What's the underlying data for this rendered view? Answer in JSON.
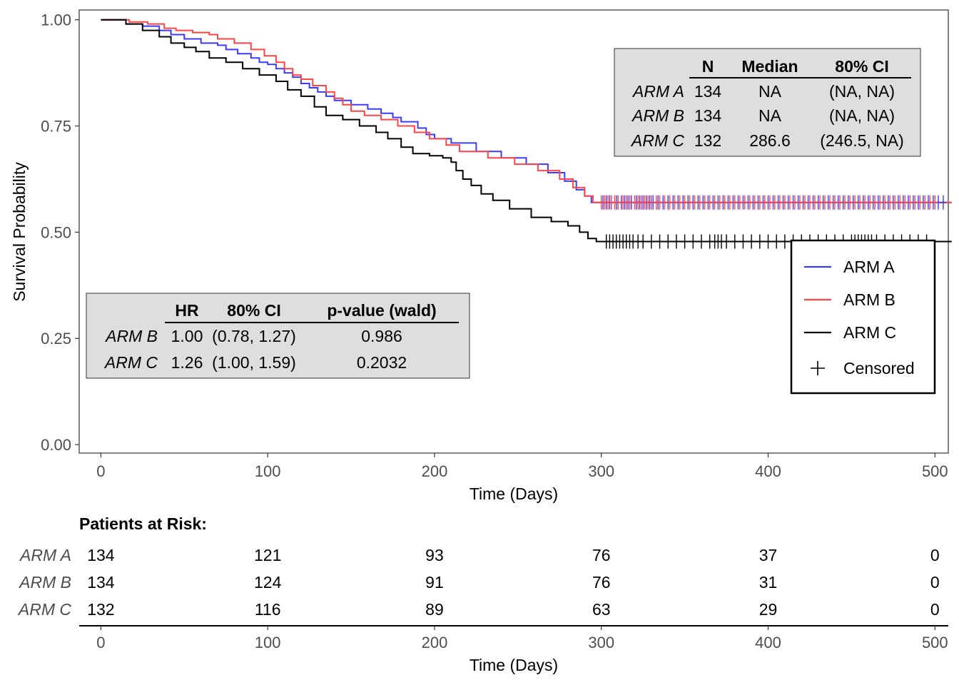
{
  "chart_data": {
    "type": "line",
    "subtype": "kaplan-meier",
    "xlabel": "Time (Days)",
    "ylabel": "Survival Probability",
    "xlim": [
      -13,
      508
    ],
    "ylim": [
      -0.02,
      1.023
    ],
    "x_ticks": [
      0,
      100,
      200,
      300,
      400,
      500
    ],
    "y_ticks": [
      0.0,
      0.25,
      0.5,
      0.75,
      1.0
    ],
    "y_tick_labels": [
      "0.00",
      "0.25",
      "0.50",
      "0.75",
      "1.00"
    ],
    "grid": false,
    "legend": {
      "position": "right",
      "entries": [
        "ARM A",
        "ARM B",
        "ARM C",
        "Censored"
      ]
    },
    "series": [
      {
        "name": "ARM A",
        "color": "#3b3bff",
        "steps": [
          [
            0,
            1.0
          ],
          [
            15,
            0.99
          ],
          [
            25,
            0.985
          ],
          [
            35,
            0.975
          ],
          [
            42,
            0.965
          ],
          [
            50,
            0.955
          ],
          [
            60,
            0.945
          ],
          [
            70,
            0.94
          ],
          [
            75,
            0.93
          ],
          [
            82,
            0.92
          ],
          [
            90,
            0.91
          ],
          [
            95,
            0.9
          ],
          [
            100,
            0.895
          ],
          [
            105,
            0.885
          ],
          [
            110,
            0.875
          ],
          [
            115,
            0.865
          ],
          [
            120,
            0.85
          ],
          [
            125,
            0.84
          ],
          [
            130,
            0.83
          ],
          [
            135,
            0.82
          ],
          [
            140,
            0.81
          ],
          [
            150,
            0.8
          ],
          [
            160,
            0.79
          ],
          [
            168,
            0.78
          ],
          [
            175,
            0.77
          ],
          [
            180,
            0.76
          ],
          [
            190,
            0.745
          ],
          [
            195,
            0.73
          ],
          [
            200,
            0.72
          ],
          [
            210,
            0.71
          ],
          [
            225,
            0.69
          ],
          [
            240,
            0.675
          ],
          [
            255,
            0.66
          ],
          [
            268,
            0.64
          ],
          [
            278,
            0.62
          ],
          [
            285,
            0.6
          ],
          [
            290,
            0.585
          ],
          [
            294,
            0.57
          ],
          [
            510,
            0.57
          ]
        ],
        "censored_x": [
          301,
          303,
          305,
          306,
          309,
          310,
          312,
          314,
          316,
          318,
          321,
          323,
          325,
          327,
          329,
          331,
          334,
          337,
          340,
          343,
          346,
          349,
          352,
          355,
          358,
          361,
          364,
          367,
          370,
          373,
          376,
          379,
          382,
          385,
          388,
          391,
          394,
          397,
          400,
          403,
          406,
          409,
          412,
          415,
          418,
          421,
          424,
          427,
          430,
          433,
          436,
          439,
          442,
          445,
          448,
          451,
          454,
          457,
          460,
          463,
          466,
          469,
          472,
          475,
          478,
          481,
          484,
          487,
          490,
          493,
          496,
          499,
          502,
          505
        ],
        "censored_y": 0.57
      },
      {
        "name": "ARM B",
        "color": "#ff4545",
        "steps": [
          [
            0,
            1.0
          ],
          [
            17,
            0.995
          ],
          [
            28,
            0.99
          ],
          [
            38,
            0.98
          ],
          [
            45,
            0.975
          ],
          [
            55,
            0.97
          ],
          [
            65,
            0.965
          ],
          [
            70,
            0.955
          ],
          [
            80,
            0.945
          ],
          [
            90,
            0.93
          ],
          [
            98,
            0.915
          ],
          [
            105,
            0.9
          ],
          [
            110,
            0.885
          ],
          [
            115,
            0.87
          ],
          [
            120,
            0.86
          ],
          [
            127,
            0.845
          ],
          [
            135,
            0.83
          ],
          [
            140,
            0.815
          ],
          [
            145,
            0.8
          ],
          [
            150,
            0.785
          ],
          [
            158,
            0.775
          ],
          [
            168,
            0.765
          ],
          [
            178,
            0.75
          ],
          [
            188,
            0.735
          ],
          [
            197,
            0.72
          ],
          [
            207,
            0.705
          ],
          [
            215,
            0.69
          ],
          [
            232,
            0.675
          ],
          [
            248,
            0.66
          ],
          [
            262,
            0.645
          ],
          [
            275,
            0.625
          ],
          [
            283,
            0.605
          ],
          [
            290,
            0.585
          ],
          [
            295,
            0.57
          ],
          [
            510,
            0.57
          ]
        ],
        "censored_x": [
          300,
          302,
          304,
          306,
          308,
          310,
          313,
          315,
          317,
          320,
          322,
          324,
          326,
          328,
          330,
          333,
          335,
          338,
          341,
          344,
          347,
          350,
          353,
          356,
          359,
          362,
          365,
          368,
          371,
          374,
          377,
          380,
          383,
          386,
          389,
          392,
          395,
          398,
          401,
          404,
          407,
          410,
          413,
          416,
          419,
          422,
          425,
          428,
          431,
          434,
          437,
          440,
          443,
          446,
          449,
          452,
          455,
          458,
          461,
          464,
          467,
          470,
          473,
          476,
          479,
          482,
          485,
          488,
          491,
          494,
          497,
          500
        ],
        "censored_y": 0.57
      },
      {
        "name": "ARM C",
        "color": "#000000",
        "steps": [
          [
            0,
            1.0
          ],
          [
            15,
            0.99
          ],
          [
            25,
            0.975
          ],
          [
            35,
            0.96
          ],
          [
            42,
            0.945
          ],
          [
            50,
            0.935
          ],
          [
            57,
            0.925
          ],
          [
            65,
            0.91
          ],
          [
            75,
            0.9
          ],
          [
            85,
            0.885
          ],
          [
            95,
            0.87
          ],
          [
            105,
            0.855
          ],
          [
            112,
            0.835
          ],
          [
            120,
            0.82
          ],
          [
            128,
            0.795
          ],
          [
            135,
            0.775
          ],
          [
            145,
            0.765
          ],
          [
            155,
            0.75
          ],
          [
            165,
            0.735
          ],
          [
            172,
            0.72
          ],
          [
            180,
            0.7
          ],
          [
            187,
            0.685
          ],
          [
            197,
            0.68
          ],
          [
            205,
            0.675
          ],
          [
            210,
            0.665
          ],
          [
            213,
            0.645
          ],
          [
            217,
            0.625
          ],
          [
            222,
            0.61
          ],
          [
            228,
            0.59
          ],
          [
            235,
            0.575
          ],
          [
            245,
            0.555
          ],
          [
            258,
            0.535
          ],
          [
            270,
            0.525
          ],
          [
            280,
            0.515
          ],
          [
            287,
            0.5
          ],
          [
            292,
            0.485
          ],
          [
            297,
            0.478
          ],
          [
            510,
            0.478
          ]
        ],
        "censored_x": [
          303,
          305,
          307,
          309,
          311,
          313,
          315,
          317,
          319,
          322,
          325,
          330,
          335,
          340,
          345,
          350,
          355,
          360,
          365,
          368,
          370,
          372,
          375,
          380,
          385,
          390,
          395,
          400,
          405,
          410,
          415,
          420,
          425,
          430,
          435,
          440,
          445,
          450,
          452,
          454,
          456,
          458,
          460,
          462,
          465,
          470,
          475,
          480,
          485,
          490,
          495
        ],
        "censored_y": 0.478
      }
    ],
    "median_table": {
      "headers": [
        "",
        "N",
        "Median",
        "80% CI"
      ],
      "rows": [
        [
          "ARM A",
          "134",
          "NA",
          "(NA, NA)"
        ],
        [
          "ARM B",
          "134",
          "NA",
          "(NA, NA)"
        ],
        [
          "ARM C",
          "132",
          "286.6",
          "(246.5, NA)"
        ]
      ]
    },
    "hr_table": {
      "headers": [
        "",
        "HR",
        "80% CI",
        "p-value (wald)"
      ],
      "rows": [
        [
          "ARM B",
          "1.00",
          "(0.78, 1.27)",
          "0.986"
        ],
        [
          "ARM C",
          "1.26",
          "(1.00, 1.59)",
          "0.2032"
        ]
      ]
    },
    "risk_table": {
      "title": "Patients at Risk:",
      "xlabel": "Time (Days)",
      "times": [
        0,
        100,
        200,
        300,
        400,
        500
      ],
      "rows": [
        {
          "label": "ARM A",
          "counts": [
            134,
            121,
            93,
            76,
            37,
            0
          ]
        },
        {
          "label": "ARM B",
          "counts": [
            134,
            124,
            91,
            76,
            31,
            0
          ]
        },
        {
          "label": "ARM C",
          "counts": [
            132,
            116,
            89,
            63,
            29,
            0
          ]
        }
      ]
    }
  }
}
